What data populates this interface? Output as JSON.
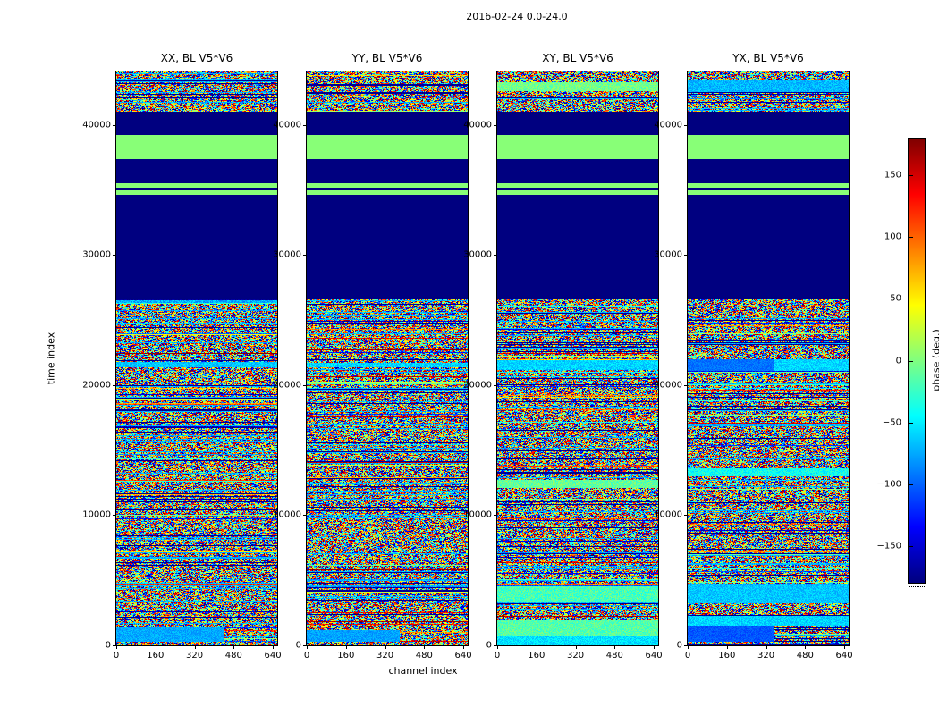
{
  "figure": {
    "title": "2016-02-24 0.0-24.0"
  },
  "chart_data": {
    "type": "heatmap",
    "title": "2016-02-24 0.0-24.0",
    "xlabel": "channel index",
    "ylabel": "time index",
    "x_range": [
      0,
      658
    ],
    "y_range": [
      0,
      44100
    ],
    "x_ticks": [
      0,
      160,
      320,
      480,
      640
    ],
    "x_tick_labels": [
      "0",
      "160",
      "320",
      "480",
      "640"
    ],
    "y_ticks": [
      0,
      10000,
      20000,
      30000,
      40000
    ],
    "y_tick_labels": [
      "0",
      "10000",
      "20000",
      "30000",
      "40000"
    ],
    "colormap": "jet",
    "colorbar": {
      "label": "phase (deg.)",
      "range": [
        -180,
        180
      ],
      "ticks": [
        150,
        100,
        50,
        0,
        -50,
        -100,
        -150
      ],
      "tick_labels": [
        "150",
        "100",
        "50",
        "0",
        "−50",
        "−100",
        "−150"
      ]
    },
    "bands": [
      {
        "t0": 41000,
        "t1": 44100,
        "kind": "noise"
      },
      {
        "t0": 39200,
        "t1": 41000,
        "kind": "flat",
        "value": -180
      },
      {
        "t0": 37400,
        "t1": 39200,
        "kind": "flat",
        "value": 3
      },
      {
        "t0": 35500,
        "t1": 37400,
        "kind": "flat",
        "value": -180
      },
      {
        "t0": 35150,
        "t1": 35500,
        "kind": "flat",
        "value": 3
      },
      {
        "t0": 34950,
        "t1": 35150,
        "kind": "flat",
        "value": -180
      },
      {
        "t0": 34650,
        "t1": 34950,
        "kind": "flat",
        "value": 3
      },
      {
        "t0": 26600,
        "t1": 34650,
        "kind": "flat",
        "value": -180
      },
      {
        "t0": 0,
        "t1": 26600,
        "kind": "noise"
      }
    ],
    "panels": [
      {
        "title": "XX, BL V5*V6",
        "seed": 11,
        "features": [
          {
            "t0": 300,
            "t1": 1400,
            "x0": 0,
            "x1": 440,
            "value": -75,
            "jitter": 12
          },
          {
            "t0": 21350,
            "t1": 21750,
            "x0": 0,
            "x1": 658,
            "value": -65,
            "jitter": 15
          }
        ]
      },
      {
        "title": "YY, BL V5*V6",
        "seed": 22,
        "features": [
          {
            "t0": 250,
            "t1": 1150,
            "x0": 0,
            "x1": 380,
            "value": -78,
            "jitter": 12
          },
          {
            "t0": 21350,
            "t1": 21700,
            "x0": 0,
            "x1": 658,
            "value": -60,
            "jitter": 18
          }
        ]
      },
      {
        "title": "XY, BL V5*V6",
        "seed": 33,
        "features": [
          {
            "t0": 0,
            "t1": 700,
            "x0": 0,
            "x1": 658,
            "value": -55,
            "jitter": 15
          },
          {
            "t0": 700,
            "t1": 1900,
            "x0": 0,
            "x1": 658,
            "value": -15,
            "jitter": 18
          },
          {
            "t0": 3300,
            "t1": 4500,
            "x0": 0,
            "x1": 658,
            "value": -20,
            "jitter": 22
          },
          {
            "t0": 12100,
            "t1": 12700,
            "x0": 0,
            "x1": 658,
            "value": -10,
            "jitter": 20
          },
          {
            "t0": 21200,
            "t1": 21900,
            "x0": 0,
            "x1": 658,
            "value": -60,
            "jitter": 15
          },
          {
            "t0": 42600,
            "t1": 43300,
            "x0": 0,
            "x1": 658,
            "value": -5,
            "jitter": 18
          }
        ]
      },
      {
        "title": "YX, BL V5*V6",
        "seed": 44,
        "features": [
          {
            "t0": 300,
            "t1": 1500,
            "x0": 0,
            "x1": 350,
            "value": -105,
            "jitter": 10
          },
          {
            "t0": 1500,
            "t1": 2300,
            "x0": 0,
            "x1": 658,
            "value": -60,
            "jitter": 15
          },
          {
            "t0": 3200,
            "t1": 4700,
            "x0": 0,
            "x1": 658,
            "value": -65,
            "jitter": 14
          },
          {
            "t0": 13000,
            "t1": 13600,
            "x0": 0,
            "x1": 658,
            "value": -40,
            "jitter": 20
          },
          {
            "t0": 21100,
            "t1": 22000,
            "x0": 0,
            "x1": 350,
            "value": -95,
            "jitter": 10
          },
          {
            "t0": 21100,
            "t1": 22000,
            "x0": 350,
            "x1": 658,
            "value": -60,
            "jitter": 15
          },
          {
            "t0": 42500,
            "t1": 43400,
            "x0": 0,
            "x1": 658,
            "value": -70,
            "jitter": 15
          }
        ]
      }
    ]
  }
}
